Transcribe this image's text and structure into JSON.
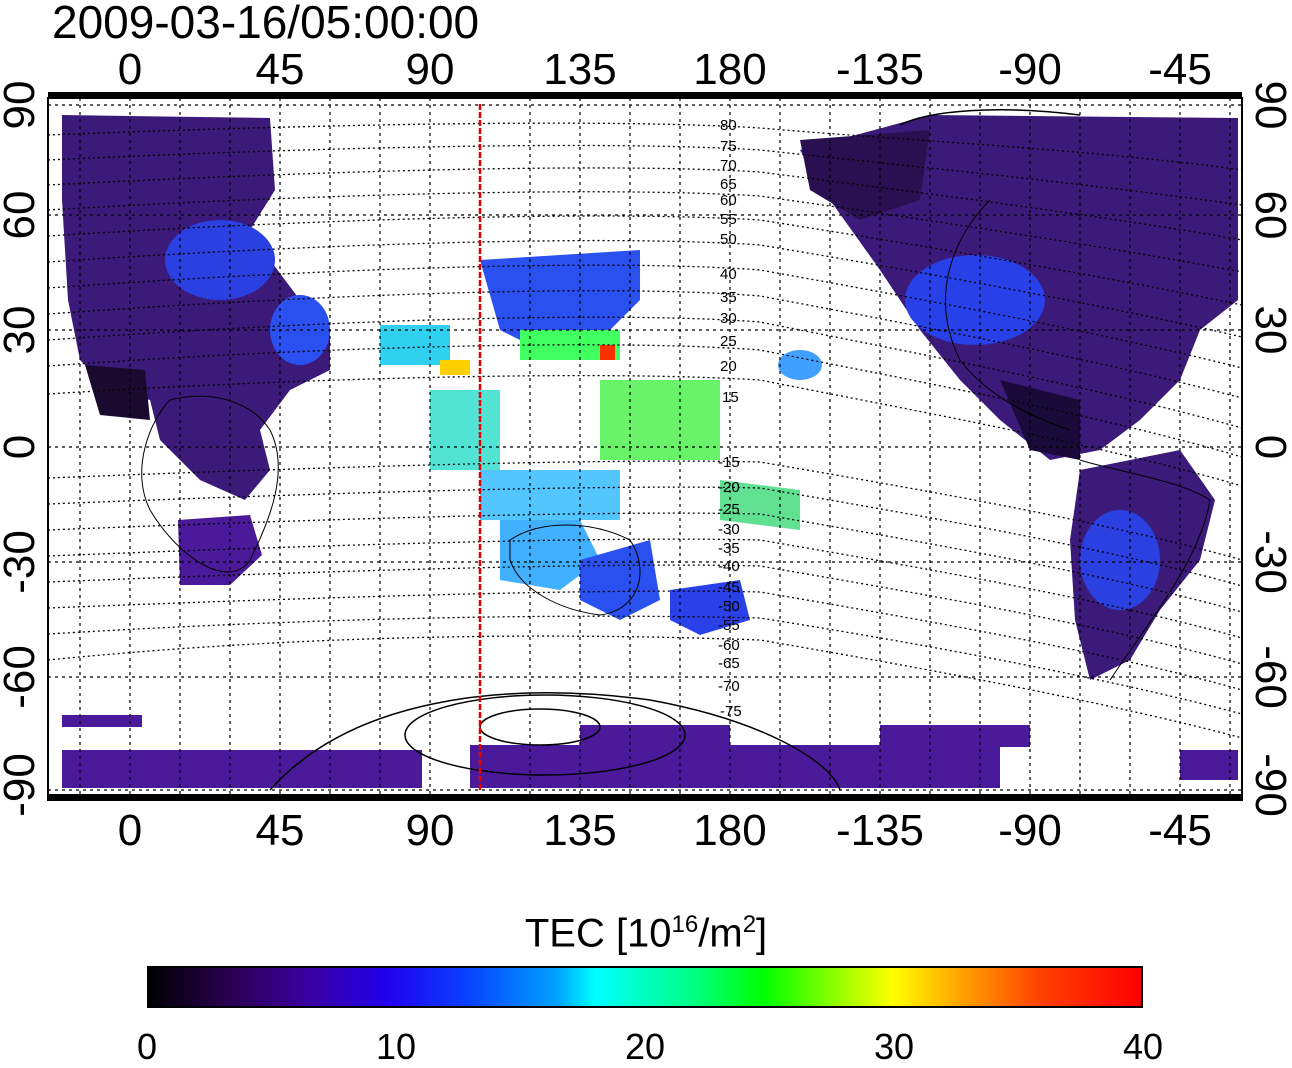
{
  "title": "2009-03-16/05:00:00",
  "x_ticks_top": [
    "0",
    "45",
    "90",
    "135",
    "180",
    "-135",
    "-90",
    "-45"
  ],
  "x_ticks_bottom": [
    "0",
    "45",
    "90",
    "135",
    "180",
    "-135",
    "-90",
    "-45"
  ],
  "y_ticks_left": [
    "90",
    "60",
    "30",
    "0",
    "-30",
    "-60",
    "-90"
  ],
  "y_ticks_right": [
    "90",
    "60",
    "30",
    "0",
    "-30",
    "-60",
    "-90"
  ],
  "contour_labels": [
    "80",
    "75",
    "70",
    "65",
    "60",
    "55",
    "50",
    "40",
    "35",
    "30",
    "25",
    "20",
    "15",
    "-15",
    "-20",
    "-25",
    "-30",
    "-35",
    "-40",
    "-45",
    "-50",
    "-55",
    "-60",
    "-65",
    "-70",
    "-75"
  ],
  "colorbar": {
    "title_main": "TEC  [10",
    "title_sup1": "16",
    "title_mid": "/m",
    "title_sup2": "2",
    "title_end": "]",
    "ticks": [
      "0",
      "10",
      "20",
      "30",
      "40"
    ],
    "range": [
      0,
      40
    ]
  },
  "meridian_line_lon": 105,
  "colors": {
    "meridian": "#e00000",
    "low_tec": "#4a1a8a",
    "mid_tec": "#2040ff"
  }
}
